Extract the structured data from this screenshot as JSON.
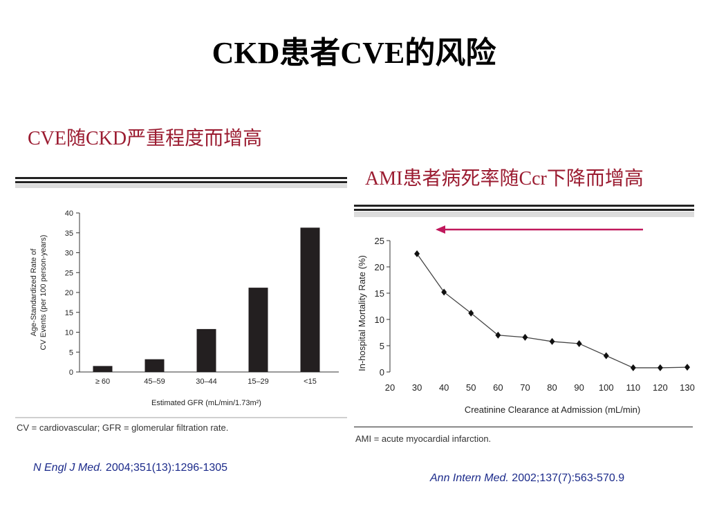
{
  "slide": {
    "title": "CKD患者CVE的风险",
    "subtitle_left": "CVE随CKD严重程度而增高",
    "subtitle_right": "AMI患者病死率随Ccr下降而增高",
    "footnote_left": "CV = cardiovascular; GFR = glomerular filtration rate.",
    "footnote_right": "AMI = acute myocardial infarction.",
    "ref_left_journal": "N Engl J Med.",
    "ref_left_cite": " 2004;351(13):1296-1305",
    "ref_right_journal": "Ann Intern Med.",
    "ref_right_cite": " 2002;137(7):563-570.9",
    "arrow_color": "#c0185c",
    "accent_color": "#9b1c31"
  },
  "chart_data": [
    {
      "type": "bar",
      "categories": [
        "≥ 60",
        "45–59",
        "30–44",
        "15–29",
        "<15"
      ],
      "values": [
        1.5,
        3.2,
        10.8,
        21.2,
        36.3
      ],
      "ylabel_line1": "Age-Standardized Rate of",
      "ylabel_line2": "CV Events (per 100 person-years)",
      "xlabel": "Estimated GFR (mL/min/1.73m²)",
      "ylim": [
        0,
        40
      ],
      "yticks": [
        0,
        5,
        10,
        15,
        20,
        25,
        30,
        35,
        40
      ],
      "grid": false
    },
    {
      "type": "line",
      "x": [
        30,
        40,
        50,
        60,
        70,
        80,
        90,
        100,
        110,
        120,
        130
      ],
      "y": [
        22.5,
        15.2,
        11.2,
        7.0,
        6.6,
        5.8,
        5.4,
        3.1,
        0.8,
        0.8,
        0.9
      ],
      "ylabel": "In-hospital Mortality Rate (%)",
      "xlabel": "Creatinine Clearance at Admission (mL/min)",
      "xlim": [
        20,
        130
      ],
      "ylim": [
        0,
        25
      ],
      "xticks": [
        20,
        30,
        40,
        50,
        60,
        70,
        80,
        90,
        100,
        110,
        120,
        130
      ],
      "yticks": [
        0,
        5,
        10,
        15,
        20,
        25
      ],
      "grid": false
    }
  ]
}
